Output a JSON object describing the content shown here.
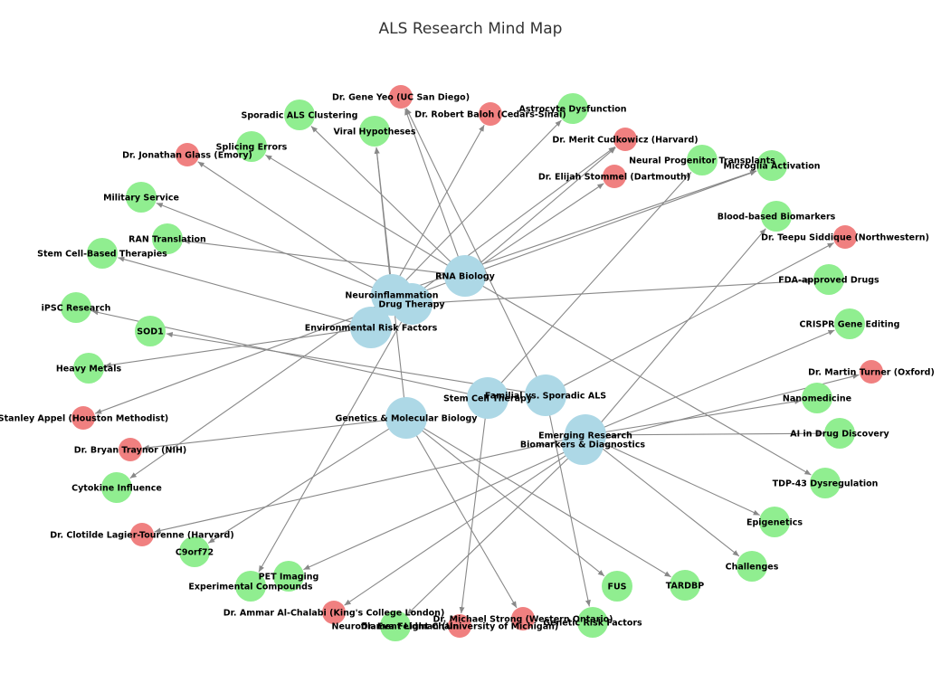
{
  "title": "ALS Research Mind Map",
  "colors": {
    "main": "#add8e6",
    "topic": "#90ee90",
    "researcher": "#f08080",
    "edge": "#888888"
  },
  "nodes": [
    {
      "id": "rna",
      "label": "RNA Biology",
      "kind": "main"
    },
    {
      "id": "neuro",
      "label": "Neuroinflammation",
      "kind": "main"
    },
    {
      "id": "drug",
      "label": "Drug Therapy",
      "kind": "main"
    },
    {
      "id": "env",
      "label": "Environmental Risk Factors",
      "kind": "main"
    },
    {
      "id": "stem",
      "label": "Stem Cell Therapy",
      "kind": "main"
    },
    {
      "id": "fam",
      "label": "Familial vs. Sporadic ALS",
      "kind": "main"
    },
    {
      "id": "gen",
      "label": "Genetics & Molecular Biology",
      "kind": "main"
    },
    {
      "id": "emerg",
      "label": "Emerging Research",
      "kind": "main"
    },
    {
      "id": "bio",
      "label": "Biomarkers & Diagnostics",
      "kind": "main"
    },
    {
      "id": "yeo",
      "label": "Dr. Gene Yeo (UC San Diego)",
      "kind": "researcher"
    },
    {
      "id": "baloh",
      "label": "Dr. Robert Baloh (Cedars-Sinai)",
      "kind": "researcher"
    },
    {
      "id": "astro",
      "label": "Astrocyte Dysfunction",
      "kind": "topic"
    },
    {
      "id": "sporclust",
      "label": "Sporadic ALS Clustering",
      "kind": "topic"
    },
    {
      "id": "viral",
      "label": "Viral Hypotheses",
      "kind": "topic"
    },
    {
      "id": "cudk",
      "label": "Dr. Merit Cudkowicz (Harvard)",
      "kind": "researcher"
    },
    {
      "id": "splice",
      "label": "Splicing Errors",
      "kind": "topic"
    },
    {
      "id": "glass",
      "label": "Dr. Jonathan Glass (Emory)",
      "kind": "researcher"
    },
    {
      "id": "npt",
      "label": "Neural Progenitor Transplants",
      "kind": "topic"
    },
    {
      "id": "micro",
      "label": "Microglia Activation",
      "kind": "topic"
    },
    {
      "id": "stommel",
      "label": "Dr. Elijah Stommel (Dartmouth)",
      "kind": "researcher"
    },
    {
      "id": "military",
      "label": "Military Service",
      "kind": "topic"
    },
    {
      "id": "bbb",
      "label": "Blood-based Biomarkers",
      "kind": "topic"
    },
    {
      "id": "ran",
      "label": "RAN Translation",
      "kind": "topic"
    },
    {
      "id": "siddique",
      "label": "Dr. Teepu Siddique (Northwestern)",
      "kind": "researcher"
    },
    {
      "id": "scbt",
      "label": "Stem Cell-Based Therapies",
      "kind": "topic"
    },
    {
      "id": "fda",
      "label": "FDA-approved Drugs",
      "kind": "topic"
    },
    {
      "id": "ipsc",
      "label": "iPSC Research",
      "kind": "topic"
    },
    {
      "id": "sod1",
      "label": "SOD1",
      "kind": "topic"
    },
    {
      "id": "crispr",
      "label": "CRISPR Gene Editing",
      "kind": "topic"
    },
    {
      "id": "heavy",
      "label": "Heavy Metals",
      "kind": "topic"
    },
    {
      "id": "turner",
      "label": "Dr. Martin Turner (Oxford)",
      "kind": "researcher"
    },
    {
      "id": "nano",
      "label": "Nanomedicine",
      "kind": "topic"
    },
    {
      "id": "appel",
      "label": "Stanley Appel (Houston Methodist)",
      "kind": "researcher"
    },
    {
      "id": "ai",
      "label": "AI in Drug Discovery",
      "kind": "topic"
    },
    {
      "id": "traynor",
      "label": "Dr. Bryan Traynor (NIH)",
      "kind": "researcher"
    },
    {
      "id": "tdp",
      "label": "TDP-43 Dysregulation",
      "kind": "topic"
    },
    {
      "id": "cyto",
      "label": "Cytokine Influence",
      "kind": "topic"
    },
    {
      "id": "epi",
      "label": "Epigenetics",
      "kind": "topic"
    },
    {
      "id": "lagier",
      "label": "Dr. Clotilde Lagier-Tourenne (Harvard)",
      "kind": "researcher"
    },
    {
      "id": "c9",
      "label": "C9orf72",
      "kind": "topic"
    },
    {
      "id": "challenges",
      "label": "Challenges",
      "kind": "topic"
    },
    {
      "id": "pet",
      "label": "PET Imaging",
      "kind": "topic"
    },
    {
      "id": "exp",
      "label": "Experimental Compounds",
      "kind": "topic"
    },
    {
      "id": "fus",
      "label": "FUS",
      "kind": "topic"
    },
    {
      "id": "tardbp",
      "label": "TARDBP",
      "kind": "topic"
    },
    {
      "id": "chalabi",
      "label": "Dr. Ammar Al-Chalabi (King's College London)",
      "kind": "researcher"
    },
    {
      "id": "strong",
      "label": "Dr. Michael Strong (Western Ontario)",
      "kind": "researcher"
    },
    {
      "id": "feldman",
      "label": "Dr. Eva Feldman (University of Michigan)",
      "kind": "researcher"
    },
    {
      "id": "nfl",
      "label": "Neurofilament Light Chain",
      "kind": "topic"
    },
    {
      "id": "grf",
      "label": "Genetic Risk Factors",
      "kind": "topic"
    }
  ],
  "edges": [
    [
      "rna",
      "yeo"
    ],
    [
      "rna",
      "sporclust"
    ],
    [
      "rna",
      "splice"
    ],
    [
      "rna",
      "cudk"
    ],
    [
      "rna",
      "stommel"
    ],
    [
      "rna",
      "micro"
    ],
    [
      "rna",
      "ran"
    ],
    [
      "rna",
      "tdp"
    ],
    [
      "rna",
      "appel"
    ],
    [
      "neuro",
      "viral"
    ],
    [
      "neuro",
      "astro"
    ],
    [
      "neuro",
      "micro"
    ],
    [
      "neuro",
      "cyto"
    ],
    [
      "neuro",
      "military"
    ],
    [
      "drug",
      "fda"
    ],
    [
      "drug",
      "exp"
    ],
    [
      "drug",
      "glass"
    ],
    [
      "env",
      "heavy"
    ],
    [
      "env",
      "scbt"
    ],
    [
      "env",
      "baloh"
    ],
    [
      "env",
      "cudk"
    ],
    [
      "stem",
      "ipsc"
    ],
    [
      "stem",
      "npt"
    ],
    [
      "stem",
      "feldman"
    ],
    [
      "fam",
      "sod1"
    ],
    [
      "fam",
      "yeo"
    ],
    [
      "fam",
      "siddique"
    ],
    [
      "fam",
      "grf"
    ],
    [
      "gen",
      "c9"
    ],
    [
      "gen",
      "fus"
    ],
    [
      "gen",
      "tardbp"
    ],
    [
      "gen",
      "traynor"
    ],
    [
      "gen",
      "strong"
    ],
    [
      "gen",
      "viral"
    ],
    [
      "emerg",
      "crispr"
    ],
    [
      "emerg",
      "ai"
    ],
    [
      "emerg",
      "epi"
    ],
    [
      "emerg",
      "challenges"
    ],
    [
      "emerg",
      "nano"
    ],
    [
      "emerg",
      "lagier"
    ],
    [
      "bio",
      "bbb"
    ],
    [
      "bio",
      "turner"
    ],
    [
      "bio",
      "pet"
    ],
    [
      "bio",
      "nfl"
    ],
    [
      "bio",
      "chalabi"
    ]
  ]
}
